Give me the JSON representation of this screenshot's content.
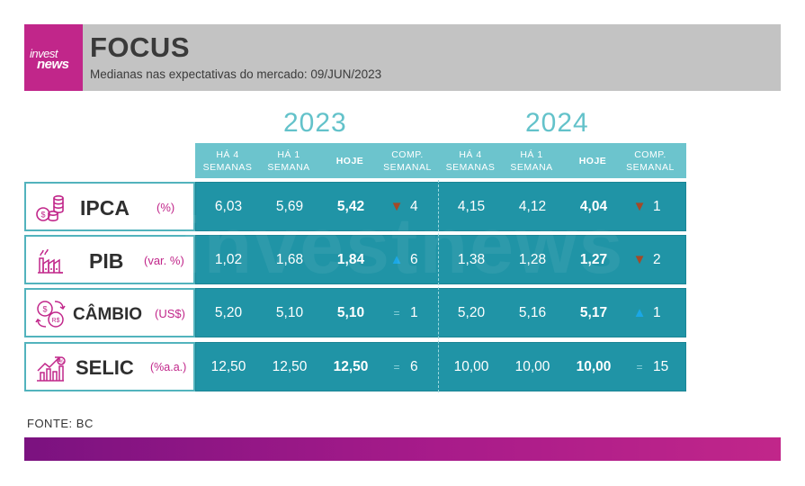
{
  "header": {
    "logo_line1": "invest",
    "logo_line2": "news",
    "title": "FOCUS",
    "subtitle": "Medianas nas expectativas do mercado: 09/JUN/2023"
  },
  "years": [
    "2023",
    "2024"
  ],
  "columns": [
    [
      "HÁ 4",
      "SEMANAS"
    ],
    [
      "HÁ 1",
      "SEMANA"
    ],
    [
      "HOJE"
    ],
    [
      "COMP.",
      "SEMANAL"
    ],
    [
      "HÁ 4",
      "SEMANAS"
    ],
    [
      "HÁ 1",
      "SEMANA"
    ],
    [
      "HOJE"
    ],
    [
      "COMP.",
      "SEMANAL"
    ]
  ],
  "rows": [
    {
      "name": "IPCA",
      "unit": "(%)",
      "icon": "coins-icon",
      "y2023": {
        "ha4": "6,03",
        "ha1": "5,69",
        "hoje": "5,42",
        "trend": "down",
        "weeks": "4"
      },
      "y2024": {
        "ha4": "4,15",
        "ha1": "4,12",
        "hoje": "4,04",
        "trend": "down",
        "weeks": "1"
      }
    },
    {
      "name": "PIB",
      "unit": "(var. %)",
      "icon": "factory-icon",
      "y2023": {
        "ha4": "1,02",
        "ha1": "1,68",
        "hoje": "1,84",
        "trend": "up",
        "weeks": "6"
      },
      "y2024": {
        "ha4": "1,38",
        "ha1": "1,28",
        "hoje": "1,27",
        "trend": "down",
        "weeks": "2"
      }
    },
    {
      "name": "CÂMBIO",
      "unit": "(US$)",
      "icon": "currency-exchange-icon",
      "y2023": {
        "ha4": "5,20",
        "ha1": "5,10",
        "hoje": "5,10",
        "trend": "equal",
        "weeks": "1"
      },
      "y2024": {
        "ha4": "5,20",
        "ha1": "5,16",
        "hoje": "5,17",
        "trend": "up",
        "weeks": "1"
      }
    },
    {
      "name": "SELIC",
      "unit": "(%a.a.)",
      "icon": "growth-chart-icon",
      "y2023": {
        "ha4": "12,50",
        "ha1": "12,50",
        "hoje": "12,50",
        "trend": "equal",
        "weeks": "6"
      },
      "y2024": {
        "ha4": "10,00",
        "ha1": "10,00",
        "hoje": "10,00",
        "trend": "equal",
        "weeks": "15"
      }
    }
  ],
  "watermark": "investnews",
  "source": "FONTE: BC",
  "colors": {
    "brand_magenta": "#c1268a",
    "header_gray": "#c3c3c3",
    "teal_light": "#6cc4cd",
    "teal_dark": "#2094a6",
    "arrow_up": "#1aa7e6",
    "arrow_down": "#a34a28"
  }
}
